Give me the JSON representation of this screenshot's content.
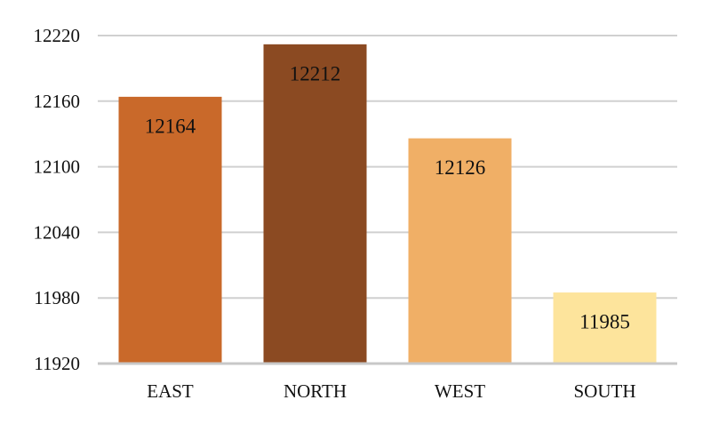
{
  "chart_data": {
    "type": "bar",
    "title": "",
    "xlabel": "",
    "ylabel": "",
    "categories": [
      "EAST",
      "NORTH",
      "WEST",
      "SOUTH"
    ],
    "values": [
      12164,
      12212,
      12126,
      11985
    ],
    "data_labels": [
      "12164",
      "12212",
      "12126",
      "11985"
    ],
    "ylim": [
      11920,
      12220
    ],
    "yticks": [
      11920,
      11980,
      12040,
      12100,
      12160,
      12220
    ],
    "ytick_labels": [
      "11920",
      "11980",
      "12040",
      "12100",
      "12160",
      "12220"
    ],
    "grid": true,
    "legend": "none",
    "colors": [
      "#C9692A",
      "#8B4A22",
      "#F0AF66",
      "#FDE49C"
    ],
    "gridline_color": "#D0D0D0",
    "axis_color": "#C8C8C8"
  }
}
